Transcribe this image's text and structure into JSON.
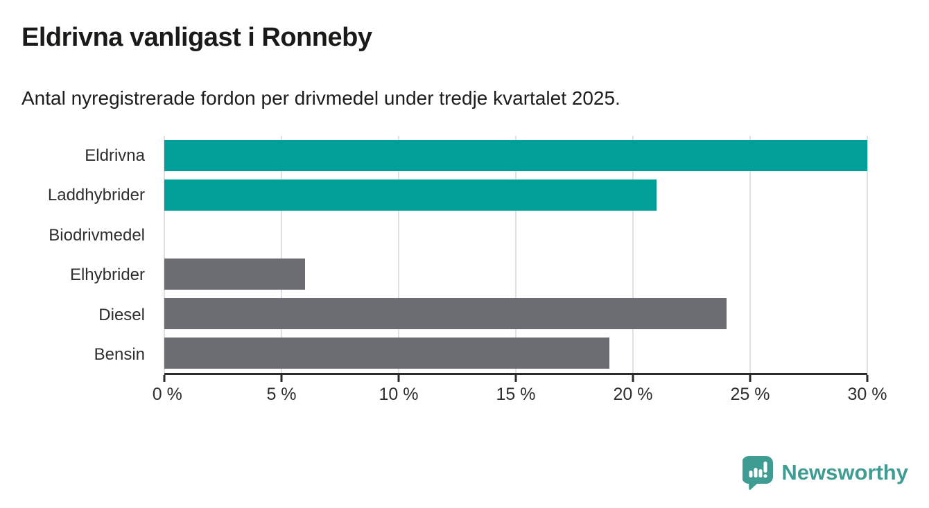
{
  "header": {
    "title": "Eldrivna vanligast i Ronneby",
    "subtitle": "Antal nyregistrerade fordon per drivmedel under tredje kvartalet 2025."
  },
  "chart_data": {
    "type": "bar",
    "orientation": "horizontal",
    "title": "Eldrivna vanligast i Ronneby",
    "subtitle": "Antal nyregistrerade fordon per drivmedel under tredje kvartalet 2025.",
    "categories": [
      "Eldrivna",
      "Laddhybrider",
      "Biodrivmedel",
      "Elhybrider",
      "Diesel",
      "Bensin"
    ],
    "values": [
      30,
      21,
      0,
      6,
      24,
      19
    ],
    "unit": "%",
    "bar_colors": [
      "#00a099",
      "#00a099",
      "#00a099",
      "#6c6c73",
      "#6c6c73",
      "#6c6c73"
    ],
    "xlim": [
      0,
      30
    ],
    "xticks": [
      0,
      5,
      10,
      15,
      20,
      25,
      30
    ],
    "xtick_labels": [
      "0 %",
      "5 %",
      "10 %",
      "15 %",
      "20 %",
      "25 %",
      "30 %"
    ],
    "grid": "vertical-gridlines-on",
    "legend": "none"
  },
  "colors": {
    "accent_teal": "#00a099",
    "neutral_gray": "#6c6c73",
    "gridline": "#e0e0e0",
    "axis": "#2b2b2b",
    "logo_teal": "#3f9c93"
  },
  "footer": {
    "brand": "Newsworthy"
  }
}
